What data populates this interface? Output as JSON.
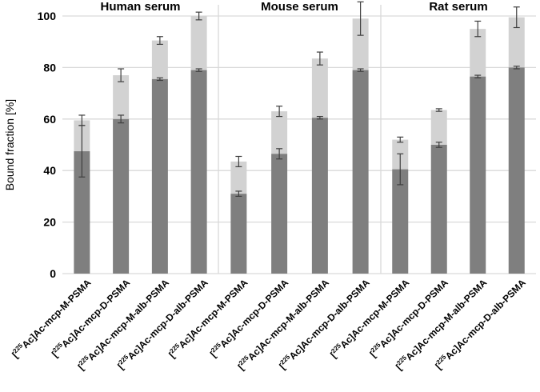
{
  "figure": {
    "background": "#ffffff"
  },
  "chart_data": {
    "type": "bar",
    "subtype": "stacked-grouped-panels",
    "title": "",
    "ylabel": "Bound fraction [%]",
    "ylim": [
      0,
      100
    ],
    "yticks": [
      0,
      20,
      40,
      60,
      80,
      100
    ],
    "grid": true,
    "legend": false,
    "categories": [
      "[225Ac]Ac-mcp-M-PSMA",
      "[225Ac]Ac-mcp-D-PSMA",
      "[225Ac]Ac-mcp-M-alb-PSMA",
      "[225Ac]Ac-mcp-D-alb-PSMA"
    ],
    "isotope_superscript": "225",
    "segment_meaning": {
      "dark": "lower (dark grey) stacked segment of bound fraction",
      "light": "upper (light grey) stacked segment up to total bound fraction"
    },
    "panels": [
      {
        "title": "Human serum",
        "bars": [
          {
            "category": "[225Ac]Ac-mcp-M-PSMA",
            "dark_top": 47.5,
            "dark_err": 10,
            "total_top": 59.5,
            "total_err": 2
          },
          {
            "category": "[225Ac]Ac-mcp-D-PSMA",
            "dark_top": 60,
            "dark_err": 1.5,
            "total_top": 77,
            "total_err": 2.5
          },
          {
            "category": "[225Ac]Ac-mcp-M-alb-PSMA",
            "dark_top": 75.5,
            "dark_err": 0.5,
            "total_top": 90.5,
            "total_err": 1.5
          },
          {
            "category": "[225Ac]Ac-mcp-D-alb-PSMA",
            "dark_top": 79,
            "dark_err": 0.5,
            "total_top": 100,
            "total_err": 1.5
          }
        ]
      },
      {
        "title": "Mouse serum",
        "bars": [
          {
            "category": "[225Ac]Ac-mcp-M-PSMA",
            "dark_top": 31,
            "dark_err": 1,
            "total_top": 43.5,
            "total_err": 2
          },
          {
            "category": "[225Ac]Ac-mcp-D-PSMA",
            "dark_top": 46.5,
            "dark_err": 2,
            "total_top": 63,
            "total_err": 2
          },
          {
            "category": "[225Ac]Ac-mcp-M-alb-PSMA",
            "dark_top": 60.5,
            "dark_err": 0.5,
            "total_top": 83.5,
            "total_err": 2.5
          },
          {
            "category": "[225Ac]Ac-mcp-D-alb-PSMA",
            "dark_top": 79,
            "dark_err": 0.5,
            "total_top": 99,
            "total_err": 6.5
          }
        ]
      },
      {
        "title": "Rat serum",
        "bars": [
          {
            "category": "[225Ac]Ac-mcp-M-PSMA",
            "dark_top": 40.5,
            "dark_err": 6,
            "total_top": 52,
            "total_err": 1
          },
          {
            "category": "[225Ac]Ac-mcp-D-PSMA",
            "dark_top": 50,
            "dark_err": 1,
            "total_top": 63.5,
            "total_err": 0.5
          },
          {
            "category": "[225Ac]Ac-mcp-M-alb-PSMA",
            "dark_top": 76.5,
            "dark_err": 0.5,
            "total_top": 95,
            "total_err": 3
          },
          {
            "category": "[225Ac]Ac-mcp-D-alb-PSMA",
            "dark_top": 80,
            "dark_err": 0.5,
            "total_top": 99.5,
            "total_err": 4
          }
        ]
      }
    ],
    "colors": {
      "dark_segment": "#7f7f7f",
      "light_segment": "#d2d2d2",
      "gridline": "#d9d9d9",
      "panel_divider": "#d9d9d9",
      "error_bar": "#3f3f3f",
      "text": "#000000"
    }
  }
}
